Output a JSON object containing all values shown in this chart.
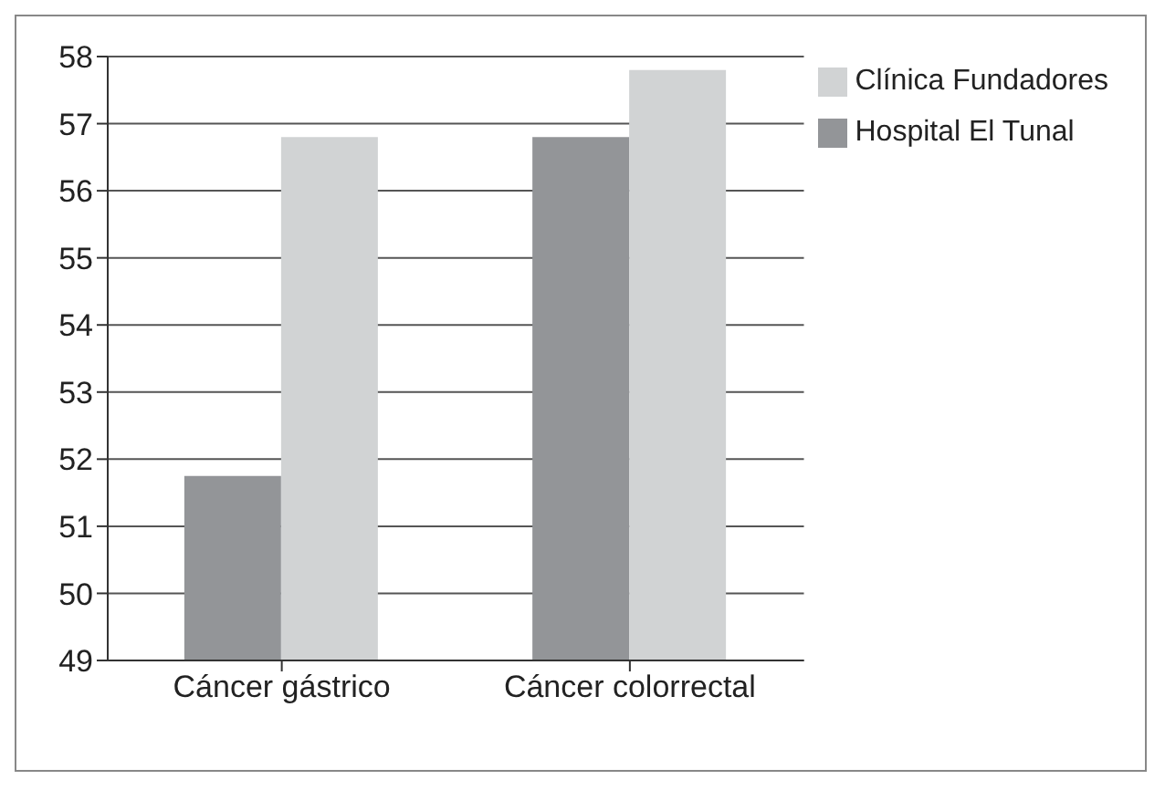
{
  "chart_data": {
    "type": "bar",
    "categories": [
      "Cáncer gástrico",
      "Cáncer colorrectal"
    ],
    "series": [
      {
        "name": "Hospital El Tunal",
        "color": "#939598",
        "values": [
          51.75,
          56.8
        ]
      },
      {
        "name": "Clínica Fundadores",
        "color": "#d1d3d4",
        "values": [
          56.8,
          57.8
        ]
      }
    ],
    "ylim": [
      49,
      58
    ],
    "yticks": [
      49,
      50,
      51,
      52,
      53,
      54,
      55,
      56,
      57,
      58
    ],
    "grid": "y",
    "legend": "top right"
  }
}
